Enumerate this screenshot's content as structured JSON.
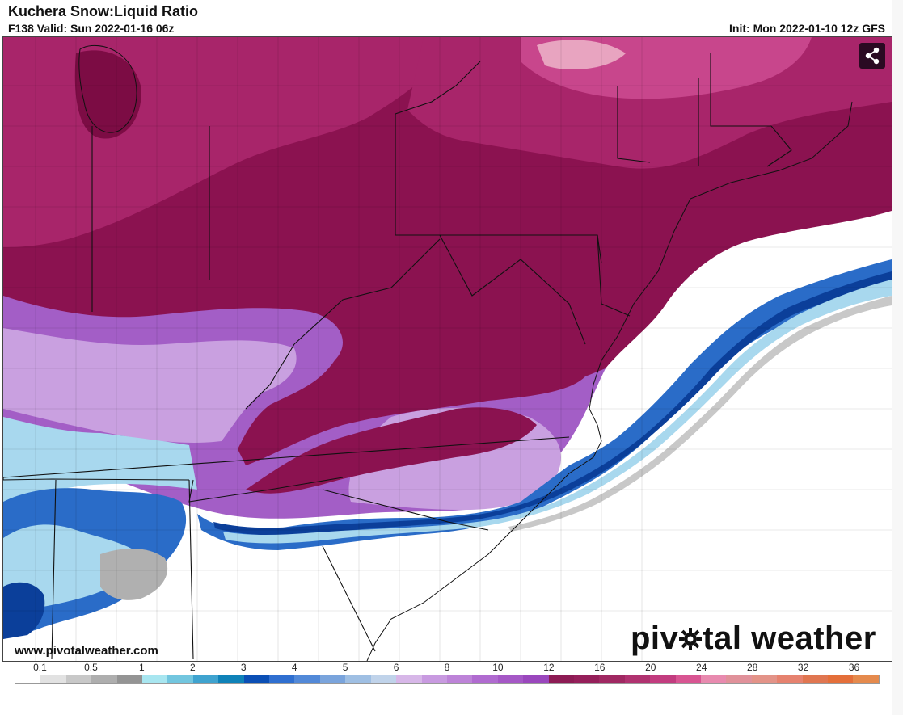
{
  "header": {
    "title": "Kuchera Snow:Liquid Ratio",
    "valid": "F138 Valid: Sun 2022-01-16 06z",
    "init": "Init: Mon 2022-01-10 12z GFS"
  },
  "watermark": {
    "url": "www.pivotalweather.com",
    "logo_pre": "piv",
    "logo_post": "tal weather"
  },
  "icons": {
    "share": "share-icon",
    "gear": "gear-icon"
  },
  "legend": {
    "labels": [
      "0.1",
      "0.5",
      "1",
      "2",
      "3",
      "4",
      "5",
      "6",
      "8",
      "10",
      "12",
      "16",
      "20",
      "24",
      "28",
      "32",
      "36"
    ],
    "colors": [
      "#ffffff",
      "#e2e2e2",
      "#c8c8c8",
      "#aeaeae",
      "#949494",
      "#a8e6f0",
      "#72c6df",
      "#3fa3cf",
      "#0f82b8",
      "#0b4fb5",
      "#2f6fd0",
      "#5289d8",
      "#7aa4dc",
      "#9fbfe3",
      "#c0d3ea",
      "#d7b7e8",
      "#c89ae0",
      "#bd83d8",
      "#b06bd0",
      "#a558c6",
      "#9a47bd",
      "#8d1b54",
      "#951f5a",
      "#a02862",
      "#b03270",
      "#c23c7f",
      "#d85592",
      "#e88aaf",
      "#e0919a",
      "#e39388",
      "#e6826f",
      "#e07651",
      "#e46f3a",
      "#e58a4d"
    ]
  },
  "map_colors": {
    "maroon": "#8b1250",
    "magenta": "#a8256a",
    "pink": "#c8468c",
    "lightpink": "#e28ab4",
    "purple": "#a35ec6",
    "lavender": "#c9a0e0",
    "lightblue": "#a8d8ee",
    "blue": "#2a6cc8",
    "darkblue": "#0b3f9a",
    "gray": "#b0b0b0",
    "white": "#ffffff"
  }
}
